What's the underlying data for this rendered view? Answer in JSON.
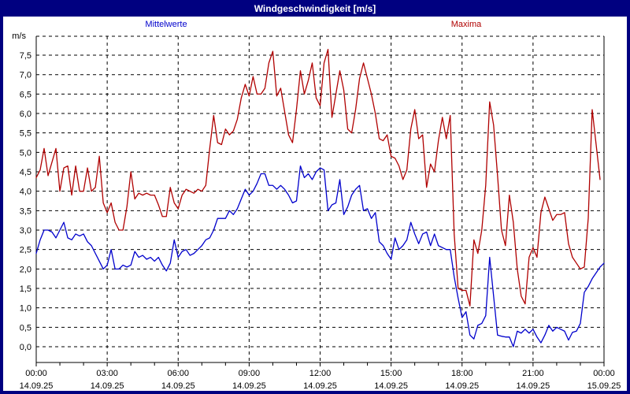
{
  "title": "Windgeschwindigkeit [m/s]",
  "legend": {
    "mean": "Mittelwerte",
    "max": "Maxima"
  },
  "colors": {
    "frame": "#000080",
    "titlebar_bg": "#000080",
    "title_text": "#ffffff",
    "mean_line": "#0000cc",
    "max_line": "#b00000",
    "grid": "#000000",
    "axis_text": "#000000"
  },
  "chart_data": {
    "type": "line",
    "title": "Windgeschwindigkeit [m/s]",
    "ylabel": "m/s",
    "xlabel": "",
    "ylim": [
      -0.4,
      8.0
    ],
    "grid": "dashed",
    "legend_position": "top",
    "sample_interval_minutes": 10,
    "yticks": [
      {
        "value": 0.0,
        "label": "0,0"
      },
      {
        "value": 0.5,
        "label": "0,5"
      },
      {
        "value": 1.0,
        "label": "1,0"
      },
      {
        "value": 1.5,
        "label": "1,5"
      },
      {
        "value": 2.0,
        "label": "2,0"
      },
      {
        "value": 2.5,
        "label": "2,5"
      },
      {
        "value": 3.0,
        "label": "3,0"
      },
      {
        "value": 3.5,
        "label": "3,5"
      },
      {
        "value": 4.0,
        "label": "4,0"
      },
      {
        "value": 4.5,
        "label": "4,5"
      },
      {
        "value": 5.0,
        "label": "5,0"
      },
      {
        "value": 5.5,
        "label": "5,5"
      },
      {
        "value": 6.0,
        "label": "6,0"
      },
      {
        "value": 6.5,
        "label": "6,5"
      },
      {
        "value": 7.0,
        "label": "7,0"
      },
      {
        "value": 7.5,
        "label": "7,5"
      }
    ],
    "xticks": [
      {
        "hour": 0,
        "time": "00:00",
        "date": "14.09.25"
      },
      {
        "hour": 3,
        "time": "03:00",
        "date": "14.09.25"
      },
      {
        "hour": 6,
        "time": "06:00",
        "date": "14.09.25"
      },
      {
        "hour": 9,
        "time": "09:00",
        "date": "14.09.25"
      },
      {
        "hour": 12,
        "time": "12:00",
        "date": "14.09.25"
      },
      {
        "hour": 15,
        "time": "15:00",
        "date": "14.09.25"
      },
      {
        "hour": 18,
        "time": "18:00",
        "date": "14.09.25"
      },
      {
        "hour": 21,
        "time": "21:00",
        "date": "14.09.25"
      },
      {
        "hour": 24,
        "time": "00:00",
        "date": "15.09.25"
      }
    ],
    "series": [
      {
        "name": "Mittelwerte",
        "color": "#0000cc",
        "start_hour": 0,
        "values": [
          2.4,
          2.75,
          3.0,
          3.0,
          2.95,
          2.8,
          3.0,
          3.2,
          2.8,
          2.75,
          2.9,
          2.85,
          2.9,
          2.7,
          2.6,
          2.4,
          2.2,
          2.0,
          2.1,
          2.5,
          2.0,
          2.0,
          2.1,
          2.05,
          2.1,
          2.45,
          2.3,
          2.35,
          2.25,
          2.3,
          2.2,
          2.3,
          2.1,
          1.95,
          2.15,
          2.75,
          2.3,
          2.45,
          2.5,
          2.35,
          2.4,
          2.5,
          2.6,
          2.75,
          2.8,
          3.0,
          3.3,
          3.3,
          3.3,
          3.5,
          3.4,
          3.55,
          3.8,
          4.05,
          3.9,
          4.0,
          4.2,
          4.45,
          4.45,
          4.15,
          4.15,
          4.05,
          4.15,
          4.05,
          3.9,
          3.7,
          3.75,
          4.65,
          4.35,
          4.45,
          4.3,
          4.5,
          4.6,
          4.55,
          3.5,
          3.65,
          3.7,
          4.3,
          3.4,
          3.6,
          3.9,
          4.05,
          4.15,
          3.5,
          3.55,
          3.3,
          3.45,
          2.7,
          2.6,
          2.4,
          2.25,
          2.8,
          2.5,
          2.6,
          2.75,
          3.2,
          2.9,
          2.65,
          2.9,
          2.95,
          2.6,
          2.9,
          2.6,
          2.55,
          2.5,
          2.5,
          1.8,
          1.25,
          0.75,
          0.9,
          0.3,
          0.2,
          0.55,
          0.6,
          0.8,
          2.3,
          1.3,
          0.3,
          0.27,
          0.25,
          0.25,
          0.0,
          0.4,
          0.35,
          0.45,
          0.35,
          0.45,
          0.25,
          0.1,
          0.3,
          0.55,
          0.4,
          0.5,
          0.45,
          0.4,
          0.17,
          0.37,
          0.4,
          0.6,
          1.4,
          1.55,
          1.75,
          1.9,
          2.05,
          2.15
        ]
      },
      {
        "name": "Maxima",
        "color": "#b00000",
        "start_hour": 0,
        "values": [
          4.35,
          4.55,
          5.1,
          4.4,
          4.75,
          5.1,
          4.0,
          4.6,
          4.65,
          3.9,
          4.65,
          4.0,
          4.0,
          4.6,
          4.0,
          4.1,
          4.9,
          3.7,
          3.45,
          3.7,
          3.2,
          3.0,
          3.0,
          3.6,
          4.5,
          3.8,
          3.95,
          3.9,
          3.95,
          3.9,
          3.9,
          3.65,
          3.35,
          3.35,
          4.1,
          3.7,
          3.55,
          3.9,
          4.05,
          4.0,
          3.95,
          4.05,
          4.0,
          4.15,
          5.1,
          5.95,
          5.25,
          5.2,
          5.6,
          5.45,
          5.55,
          5.85,
          6.4,
          6.75,
          6.45,
          6.95,
          6.5,
          6.5,
          6.65,
          7.3,
          7.6,
          6.45,
          6.65,
          6.05,
          5.45,
          5.25,
          6.1,
          7.1,
          6.5,
          6.85,
          7.3,
          6.4,
          6.2,
          7.3,
          7.65,
          5.9,
          6.5,
          7.1,
          6.6,
          5.6,
          5.5,
          6.1,
          6.9,
          7.3,
          6.9,
          6.5,
          6.0,
          5.35,
          5.3,
          5.45,
          4.9,
          4.85,
          4.65,
          4.3,
          4.55,
          5.6,
          6.1,
          5.35,
          5.45,
          4.1,
          4.7,
          4.5,
          5.3,
          5.9,
          5.35,
          5.95,
          2.9,
          1.5,
          1.45,
          1.45,
          1.05,
          2.75,
          2.4,
          3.0,
          4.15,
          6.3,
          5.7,
          4.4,
          3.0,
          2.6,
          3.9,
          3.2,
          2.0,
          1.3,
          1.1,
          2.3,
          2.55,
          2.3,
          3.45,
          3.85,
          3.55,
          3.25,
          3.4,
          3.4,
          3.45,
          2.65,
          2.3,
          2.15,
          2.0,
          2.05,
          3.3,
          6.1,
          5.2,
          4.3
        ]
      }
    ]
  }
}
